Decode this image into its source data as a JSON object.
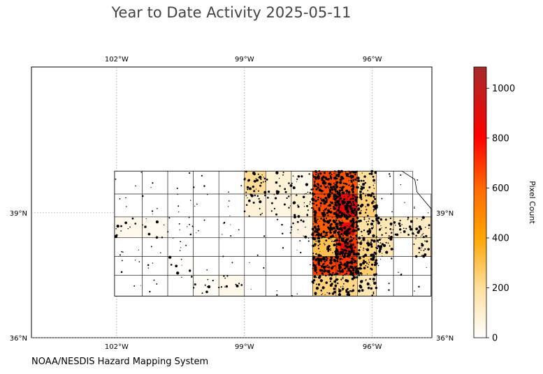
{
  "title": "Year to Date Activity 2025-05-11",
  "credit": "NOAA/NESDIS Hazard Mapping System",
  "map": {
    "lon_range": [
      -104,
      -94.6
    ],
    "lat_range": [
      36,
      42.5
    ],
    "lon_ticks": [
      "102°W",
      "99°W",
      "96°W"
    ],
    "lat_ticks": [
      "39°N",
      "36°N"
    ],
    "gridlines": true,
    "state_outline_lonlat": [
      [
        -102.05,
        40.0
      ],
      [
        -95.3,
        40.0
      ],
      [
        -95.0,
        39.8
      ],
      [
        -94.95,
        39.5
      ],
      [
        -94.62,
        39.1
      ],
      [
        -94.62,
        37.0
      ],
      [
        -102.05,
        37.0
      ]
    ],
    "county_grid_lon": [
      -102.05,
      -101.4,
      -100.8,
      -100.2,
      -99.6,
      -99.0,
      -98.5,
      -97.9,
      -97.4,
      -96.85,
      -96.35,
      -95.9,
      -95.5,
      -95.05,
      -94.62
    ],
    "county_grid_lat": [
      37.0,
      37.5,
      37.95,
      38.4,
      38.9,
      39.45,
      40.0
    ],
    "fire_cells": [
      {
        "col": 0,
        "row": 2,
        "value": 40
      },
      {
        "col": 5,
        "row": 0,
        "value": 210
      },
      {
        "col": 5,
        "row": 1,
        "value": 80
      },
      {
        "col": 6,
        "row": 0,
        "value": 90
      },
      {
        "col": 6,
        "row": 1,
        "value": 60
      },
      {
        "col": 7,
        "row": 0,
        "value": 40
      },
      {
        "col": 7,
        "row": 1,
        "value": 90
      },
      {
        "col": 7,
        "row": 2,
        "value": 60
      },
      {
        "col": 8,
        "row": 0,
        "value": 650
      },
      {
        "col": 8,
        "row": 1,
        "value": 640
      },
      {
        "col": 8,
        "row": 2,
        "value": 600
      },
      {
        "col": 8,
        "row": 3,
        "value": 300
      },
      {
        "col": 8,
        "row": 4,
        "value": 660
      },
      {
        "col": 8,
        "row": 5,
        "value": 240
      },
      {
        "col": 9,
        "row": 0,
        "value": 620
      },
      {
        "col": 9,
        "row": 1,
        "value": 860
      },
      {
        "col": 9,
        "row": 2,
        "value": 620
      },
      {
        "col": 9,
        "row": 3,
        "value": 690
      },
      {
        "col": 9,
        "row": 4,
        "value": 690
      },
      {
        "col": 9,
        "row": 5,
        "value": 230
      },
      {
        "col": 10,
        "row": 0,
        "value": 200
      },
      {
        "col": 10,
        "row": 1,
        "value": 250
      },
      {
        "col": 10,
        "row": 2,
        "value": 190
      },
      {
        "col": 10,
        "row": 3,
        "value": 230
      },
      {
        "col": 10,
        "row": 4,
        "value": 260
      },
      {
        "col": 10,
        "row": 5,
        "value": 150
      },
      {
        "col": 11,
        "row": 2,
        "value": 150
      },
      {
        "col": 11,
        "row": 3,
        "value": 160
      },
      {
        "col": 12,
        "row": 2,
        "value": 110
      },
      {
        "col": 13,
        "row": 2,
        "value": 120
      },
      {
        "col": 13,
        "row": 3,
        "value": 120
      },
      {
        "col": 4,
        "row": 5,
        "value": 40
      },
      {
        "col": 3,
        "row": 5,
        "value": 20
      },
      {
        "col": 2,
        "row": 4,
        "value": 10
      },
      {
        "col": 1,
        "row": 2,
        "value": 30
      }
    ],
    "hotspot_cells": [
      {
        "col": 9,
        "row": 2,
        "value": 870
      },
      {
        "col": 9,
        "row": 3,
        "value": 900
      }
    ]
  },
  "colorbar": {
    "label": "Pixel Count",
    "min": 0,
    "max": 1085,
    "ticks": [
      "0",
      "200",
      "400",
      "600",
      "800",
      "1000"
    ],
    "tick_values": [
      0,
      200,
      400,
      600,
      800,
      1000
    ],
    "colors": [
      "#ffffff",
      "#ffe0a0",
      "#ffa500",
      "#ff6000",
      "#ff0000",
      "#a52a2a"
    ]
  }
}
